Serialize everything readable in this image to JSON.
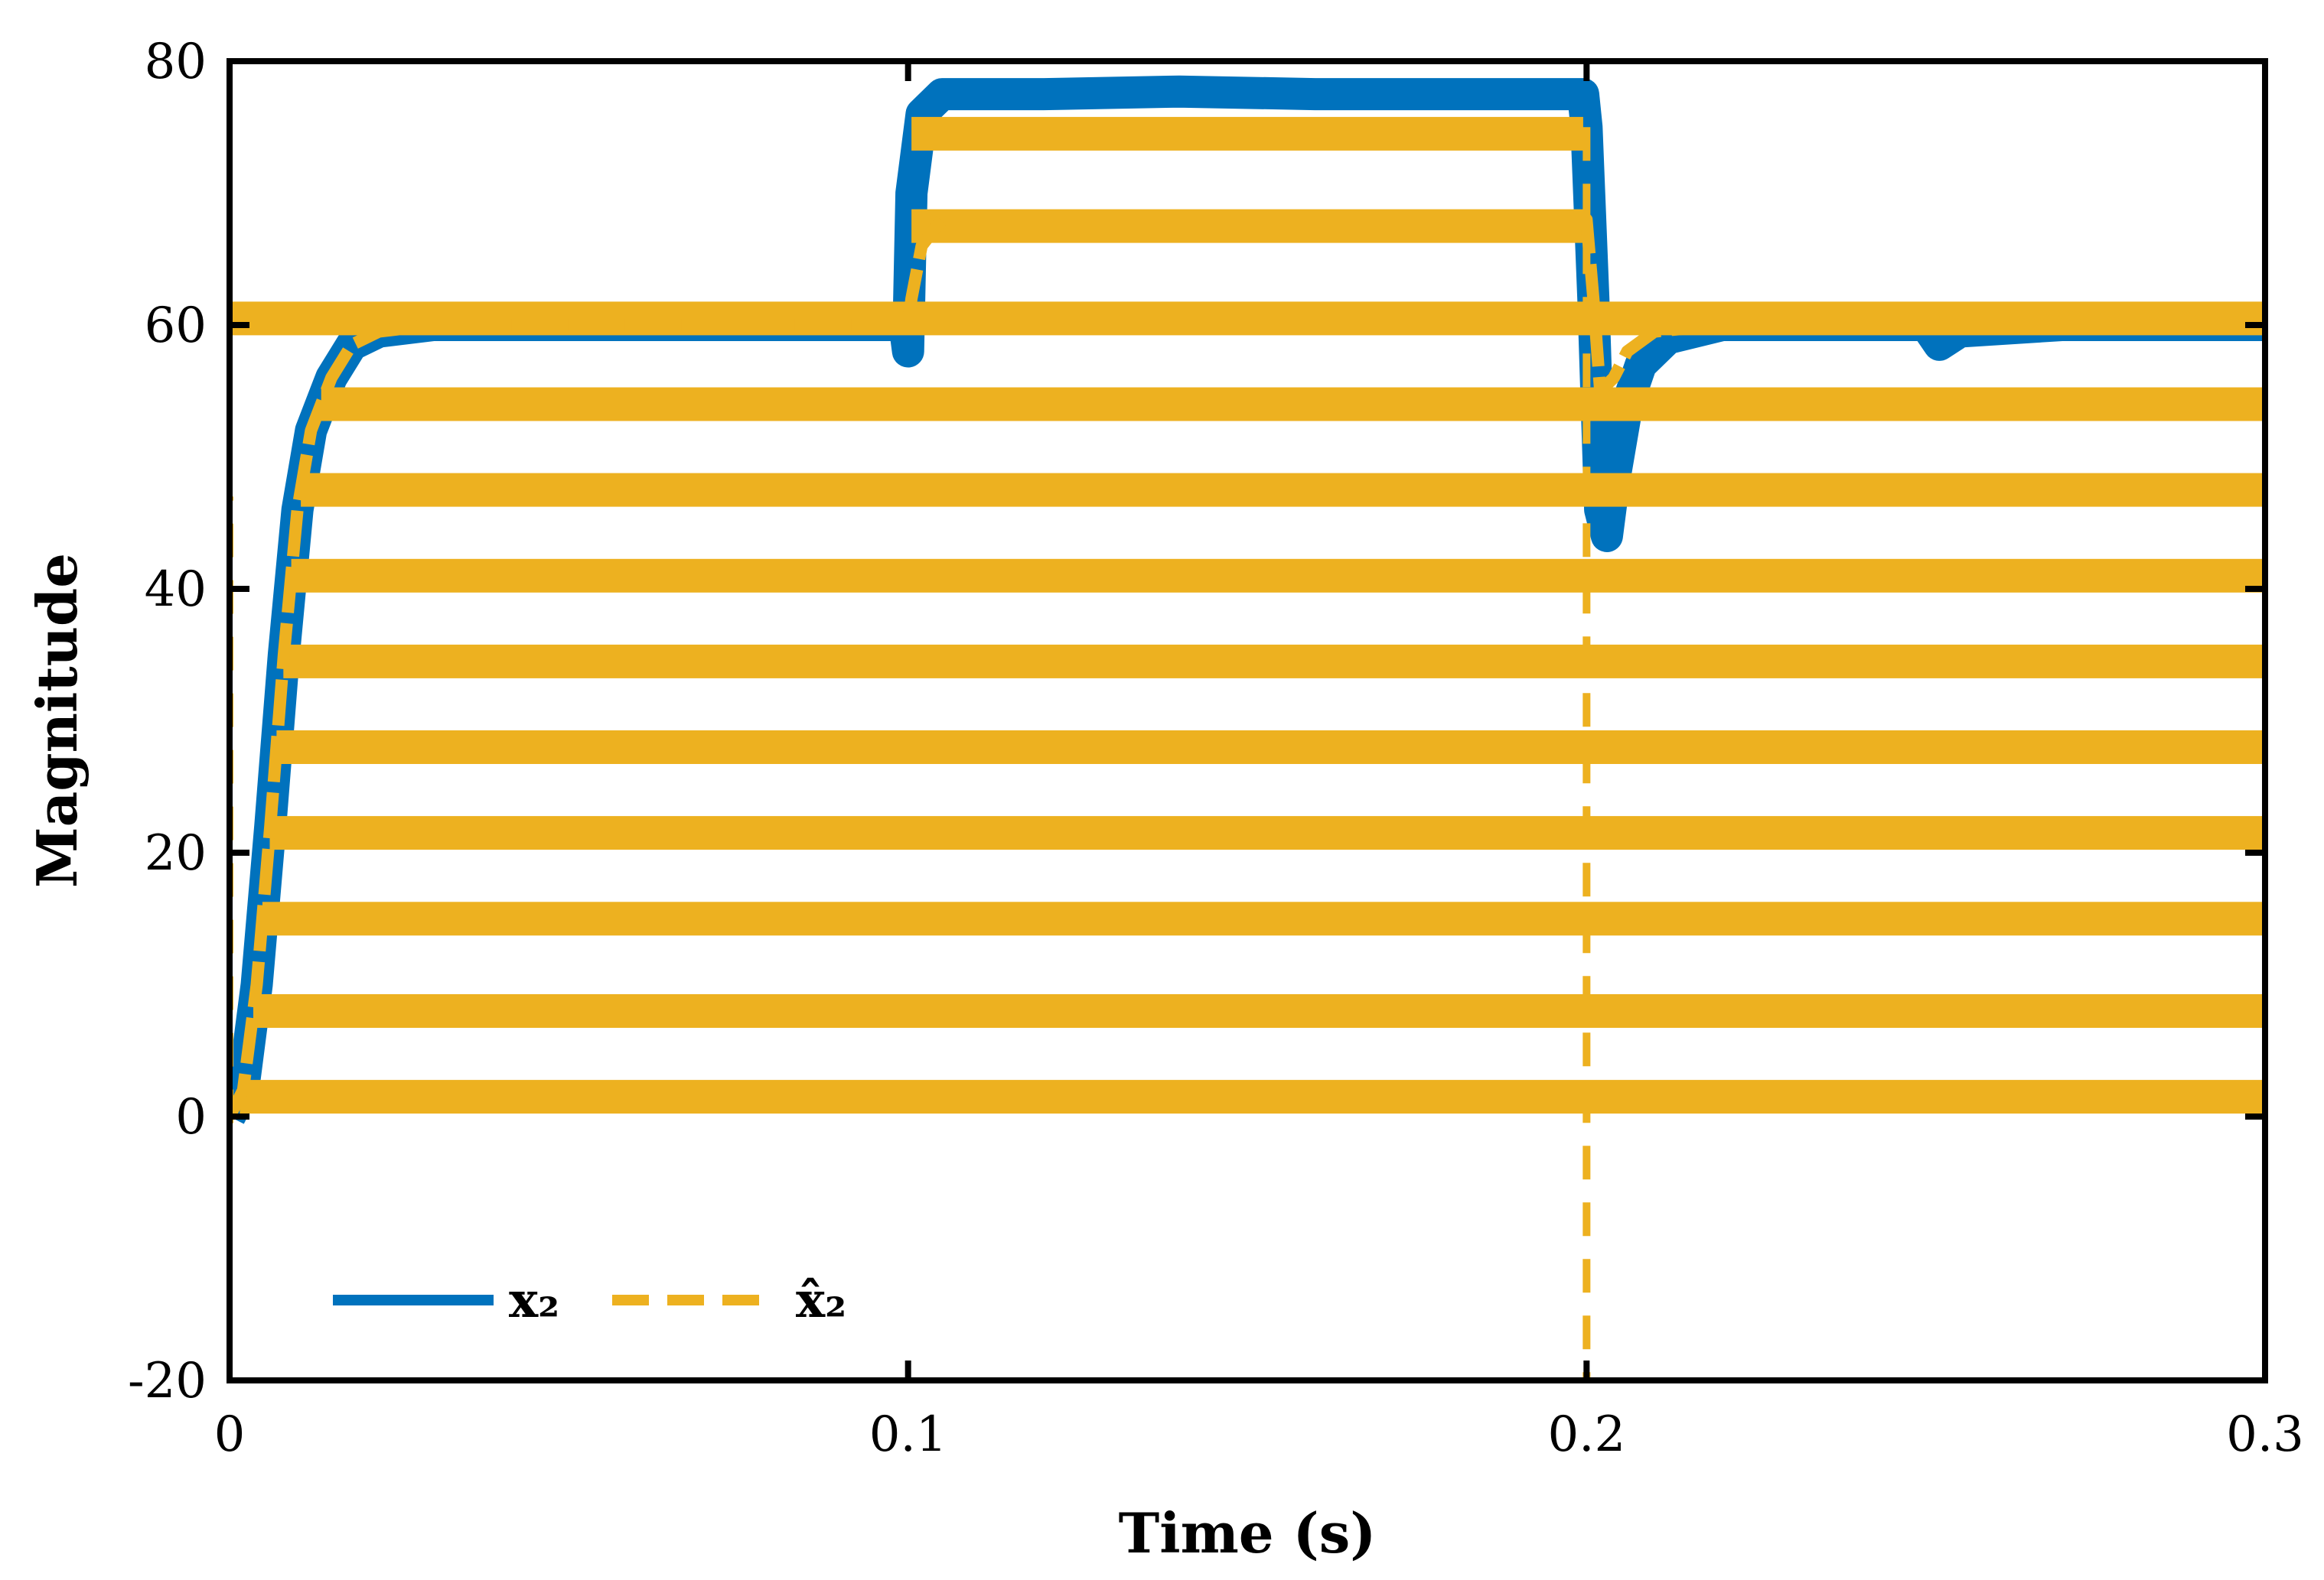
{
  "chart_data": {
    "type": "line",
    "title": "",
    "xlabel": "Time (s)",
    "ylabel": "Magnitude",
    "xlim": [
      0,
      0.3
    ],
    "ylim": [
      -20,
      80
    ],
    "x_ticks": [
      0,
      0.1,
      0.2,
      0.3
    ],
    "x_tick_labels": [
      "0",
      "0.1",
      "0.2",
      "0.3"
    ],
    "y_ticks": [
      -20,
      0,
      20,
      40,
      60,
      80
    ],
    "y_tick_labels": [
      "-20",
      "0",
      "20",
      "40",
      "60",
      "80"
    ],
    "grid": false,
    "legend_position": "bottom-left",
    "colors": {
      "x2": "#0072BD",
      "x2hat": "#EDB120"
    },
    "series": [
      {
        "name": "x₂",
        "style": "solid",
        "color": "#0072BD",
        "points": [
          [
            0,
            0
          ],
          [
            0.002,
            2
          ],
          [
            0.004,
            10
          ],
          [
            0.006,
            22
          ],
          [
            0.008,
            35
          ],
          [
            0.01,
            46
          ],
          [
            0.012,
            52
          ],
          [
            0.015,
            56
          ],
          [
            0.018,
            58.5
          ],
          [
            0.022,
            59.5
          ],
          [
            0.03,
            60
          ],
          [
            0.06,
            60
          ],
          [
            0.0995,
            60
          ],
          [
            0.1,
            58
          ],
          [
            0.1005,
            70
          ],
          [
            0.102,
            76
          ],
          [
            0.105,
            77.5
          ],
          [
            0.12,
            77.5
          ],
          [
            0.14,
            77.7
          ],
          [
            0.16,
            77.5
          ],
          [
            0.1995,
            77.5
          ],
          [
            0.2,
            75
          ],
          [
            0.201,
            62
          ],
          [
            0.202,
            46
          ],
          [
            0.203,
            44
          ],
          [
            0.204,
            48
          ],
          [
            0.206,
            54
          ],
          [
            0.208,
            57
          ],
          [
            0.212,
            59
          ],
          [
            0.22,
            60
          ],
          [
            0.25,
            60
          ],
          [
            0.252,
            58.5
          ],
          [
            0.255,
            59.5
          ],
          [
            0.27,
            60
          ],
          [
            0.3,
            60
          ]
        ]
      },
      {
        "name": "x̂₂",
        "style": "dashed",
        "color": "#EDB120",
        "band_centers": [
          1.5,
          8,
          15,
          21.5,
          28,
          34.5,
          41,
          47.5,
          54,
          60.5
        ],
        "upper_band_centers": [
          67.5,
          74.5
        ],
        "points": [
          [
            0,
            0
          ],
          [
            0.002,
            2
          ],
          [
            0.004,
            10
          ],
          [
            0.006,
            22
          ],
          [
            0.008,
            35
          ],
          [
            0.01,
            46
          ],
          [
            0.012,
            52
          ],
          [
            0.015,
            56
          ],
          [
            0.018,
            58.5
          ],
          [
            0.022,
            59.5
          ],
          [
            0.03,
            60
          ],
          [
            0.0995,
            60
          ],
          [
            0.1,
            60
          ],
          [
            0.1005,
            62
          ],
          [
            0.102,
            66
          ],
          [
            0.105,
            68
          ],
          [
            0.2,
            68
          ],
          [
            0.201,
            62
          ],
          [
            0.202,
            55
          ],
          [
            0.204,
            56
          ],
          [
            0.206,
            58
          ],
          [
            0.21,
            59.5
          ],
          [
            0.22,
            60
          ],
          [
            0.3,
            60
          ]
        ]
      }
    ],
    "legend": [
      {
        "label": "x₂",
        "style": "solid",
        "color": "#0072BD"
      },
      {
        "label": "x̂₂",
        "style": "dashed",
        "color": "#EDB120"
      }
    ]
  }
}
